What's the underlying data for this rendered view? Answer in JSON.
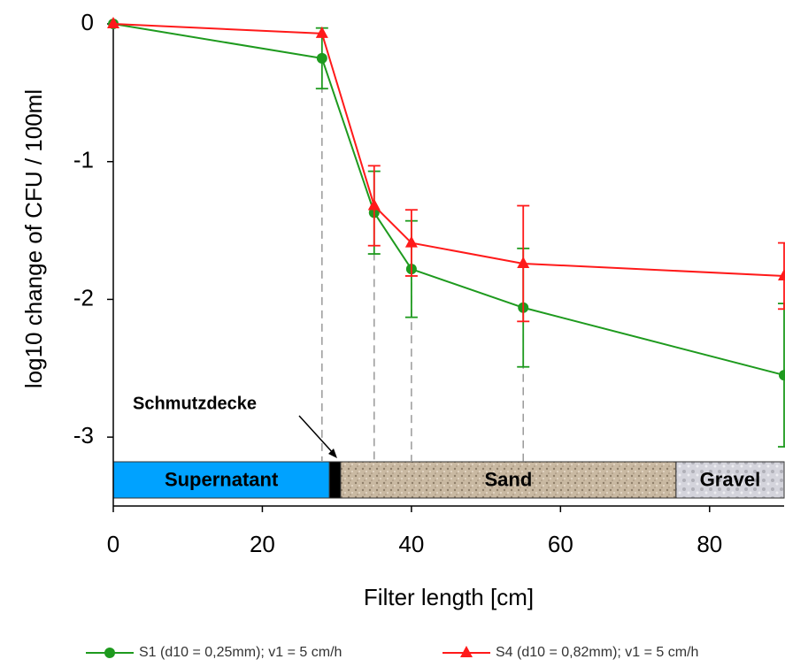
{
  "chart_data": {
    "type": "line",
    "x_label": "Filter length [cm]",
    "y_label": "log10 change of CFU / 100ml",
    "x": [
      0,
      28,
      35,
      40,
      55,
      90
    ],
    "series": [
      {
        "name": "S1 (d10 = 0,25mm); v1 = 5 cm/h",
        "color": "#1e9a1e",
        "marker": "circle",
        "values": [
          0,
          -0.25,
          -1.37,
          -1.78,
          -2.06,
          -2.55
        ],
        "errors": [
          null,
          0.22,
          0.3,
          0.35,
          0.43,
          0.52
        ]
      },
      {
        "name": "S4 (d10 = 0,82mm); v1 = 5 cm/h",
        "color": "#ff1a1a",
        "marker": "triangle",
        "values": [
          0,
          -0.07,
          -1.32,
          -1.59,
          -1.74,
          -1.83
        ],
        "errors": [
          null,
          null,
          0.29,
          0.24,
          0.42,
          0.24
        ]
      }
    ],
    "xlim": [
      0,
      90
    ],
    "xticks": [
      0,
      20,
      40,
      60,
      80
    ],
    "ylim": [
      -3.5,
      0
    ],
    "yticks": [
      0,
      -1,
      -2,
      -3
    ],
    "layers": [
      {
        "label": "Supernatant",
        "start": 0,
        "end": 29,
        "color": "#00a2ff"
      },
      {
        "label": null,
        "start": 29,
        "end": 30.5,
        "color": "#000000"
      },
      {
        "label": "Sand",
        "start": 30.5,
        "end": 75.5,
        "color": "#c8b8a0"
      },
      {
        "label": "Gravel",
        "start": 75.5,
        "end": 90,
        "color": "#d0d0d8"
      }
    ],
    "annotation": "Schmutzdecke"
  }
}
